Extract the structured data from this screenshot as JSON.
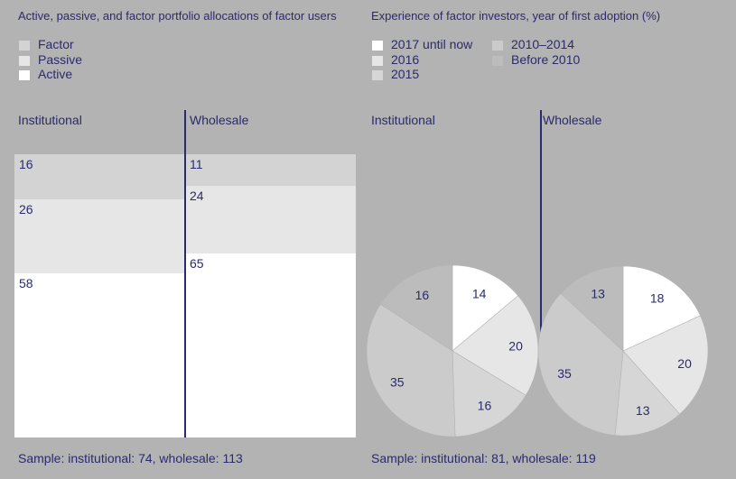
{
  "left": {
    "title": "Active, passive, and factor portfolio allocations of factor users",
    "legend": [
      {
        "label": "Factor",
        "color": "#d3d3d3"
      },
      {
        "label": "Passive",
        "color": "#e6e6e6"
      },
      {
        "label": "Active",
        "color": "#ffffff"
      }
    ],
    "col_labels": [
      "Institutional",
      "Wholesale"
    ],
    "footnote": "Sample: institutional: 74, wholesale: 113"
  },
  "right": {
    "title": "Experience of factor investors, year of first adoption (%)",
    "legend": [
      {
        "label": "2017 until now",
        "color": "#ffffff"
      },
      {
        "label": "2016",
        "color": "#e6e6e6"
      },
      {
        "label": "2015",
        "color": "#d6d6d6"
      },
      {
        "label": "2010–2014",
        "color": "#cbcbcb"
      },
      {
        "label": "Before 2010",
        "color": "#bcbcbc"
      }
    ],
    "col_labels": [
      "Institutional",
      "Wholesale"
    ],
    "footnote": "Sample: institutional: 81, wholesale: 119"
  },
  "chart_data": [
    {
      "type": "bar",
      "title": "Active, passive, and factor portfolio allocations of factor users",
      "categories": [
        "Institutional",
        "Wholesale"
      ],
      "series": [
        {
          "name": "Factor",
          "values": [
            16,
            11
          ]
        },
        {
          "name": "Passive",
          "values": [
            26,
            24
          ]
        },
        {
          "name": "Active",
          "values": [
            58,
            65
          ]
        }
      ],
      "stacked": true,
      "ylim": [
        0,
        100
      ]
    },
    {
      "type": "pie",
      "title": "Experience of factor investors, year of first adoption (%)",
      "pies": [
        {
          "name": "Institutional",
          "labels": [
            "2017 until now",
            "2016",
            "2015",
            "2010–2014",
            "Before 2010"
          ],
          "values": [
            14,
            20,
            16,
            35,
            16
          ]
        },
        {
          "name": "Wholesale",
          "labels": [
            "2017 until now",
            "2016",
            "2015",
            "2010–2014",
            "Before 2010"
          ],
          "values": [
            18,
            20,
            13,
            35,
            13
          ]
        }
      ]
    }
  ]
}
